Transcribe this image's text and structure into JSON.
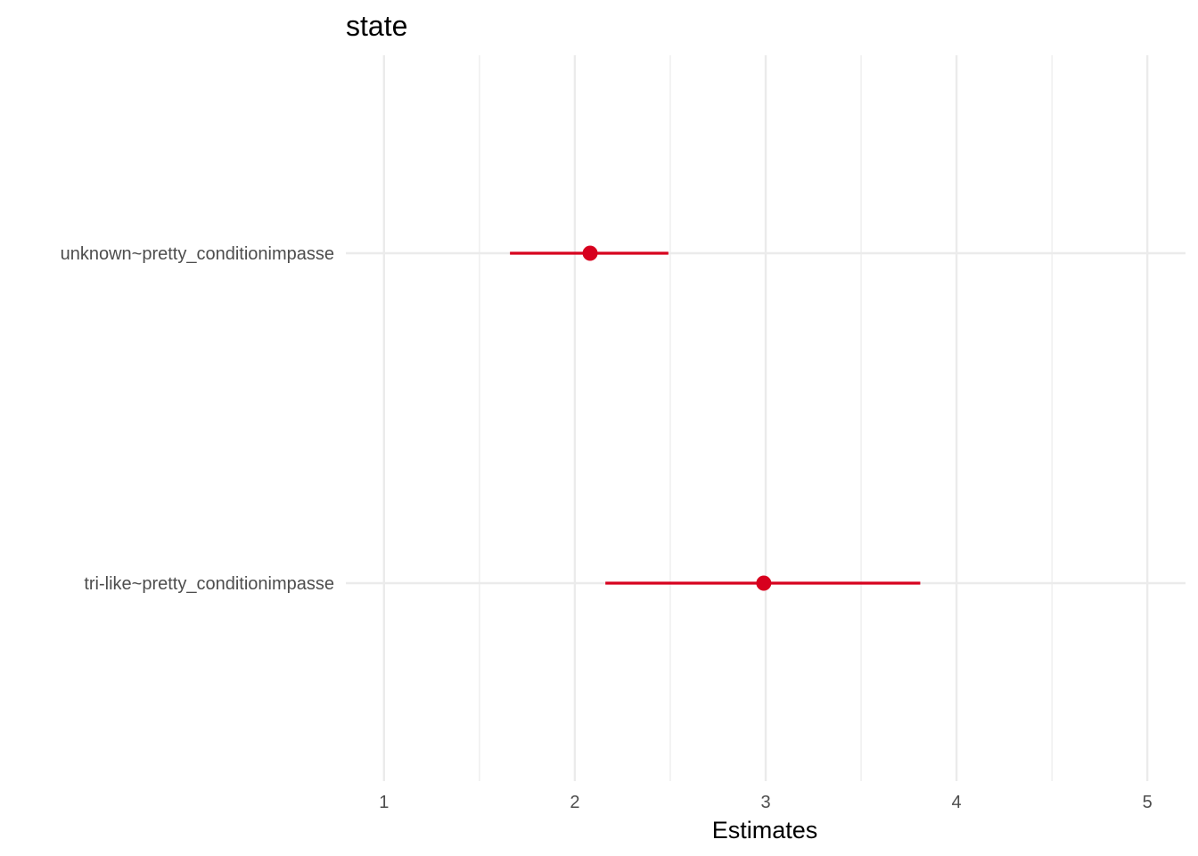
{
  "chart_data": {
    "type": "scatter",
    "title": "state",
    "xlabel": "Estimates",
    "ylabel": "",
    "xlim": [
      0.8,
      5.2
    ],
    "xticks": [
      1,
      2,
      3,
      4,
      5
    ],
    "xtick_labels": [
      "1",
      "2",
      "3",
      "4",
      "5"
    ],
    "x_minor_gridlines": [
      1.5,
      2.5,
      3.5,
      4.5
    ],
    "grid": true,
    "categories": [
      "unknown~pretty_conditionimpasse",
      "tri-like~pretty_conditionimpasse"
    ],
    "estimates": [
      2.08,
      2.99
    ],
    "ci_low": [
      1.66,
      2.16
    ],
    "ci_high": [
      2.49,
      3.81
    ],
    "point_color": "#d7001e",
    "grid_color": "#ebebeb"
  }
}
